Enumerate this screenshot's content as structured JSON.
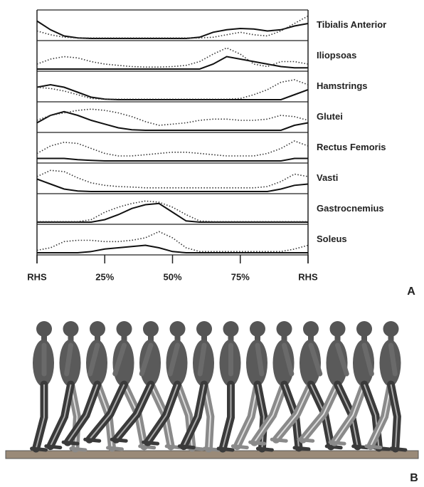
{
  "chart_data": [
    {
      "type": "line",
      "title": "Tibialis Anterior",
      "x": [
        0,
        5,
        10,
        15,
        20,
        25,
        30,
        35,
        40,
        45,
        50,
        55,
        60,
        65,
        70,
        75,
        80,
        85,
        90,
        95,
        100
      ],
      "xlim": [
        0,
        100
      ],
      "ylim": [
        0,
        1
      ],
      "series": [
        {
          "color": "#111111",
          "dash": "solid",
          "values": [
            0.7,
            0.35,
            0.1,
            0.02,
            0,
            0,
            0,
            0,
            0,
            0,
            0,
            0,
            0.05,
            0.25,
            0.35,
            0.4,
            0.38,
            0.3,
            0.35,
            0.5,
            0.6
          ]
        },
        {
          "color": "#333333",
          "dash": "dotted",
          "values": [
            0.3,
            0.15,
            0.05,
            0.02,
            0.02,
            0.02,
            0.02,
            0.02,
            0.02,
            0.02,
            0.02,
            0.02,
            0.02,
            0.05,
            0.15,
            0.25,
            0.15,
            0.1,
            0.3,
            0.6,
            0.9
          ]
        }
      ]
    },
    {
      "type": "line",
      "title": "Iliopsoas",
      "x": [
        0,
        5,
        10,
        15,
        20,
        25,
        30,
        35,
        40,
        45,
        50,
        55,
        60,
        65,
        70,
        75,
        80,
        85,
        90,
        95,
        100
      ],
      "xlim": [
        0,
        100
      ],
      "ylim": [
        0,
        1
      ],
      "series": [
        {
          "color": "#111111",
          "dash": "solid",
          "values": [
            0,
            0,
            0,
            0,
            0,
            0,
            0,
            0,
            0,
            0,
            0,
            0,
            0,
            0.2,
            0.5,
            0.4,
            0.3,
            0.2,
            0.1,
            0.05,
            0.05
          ]
        },
        {
          "color": "#333333",
          "dash": "dotted",
          "values": [
            0.2,
            0.4,
            0.5,
            0.45,
            0.3,
            0.2,
            0.15,
            0.1,
            0.08,
            0.08,
            0.1,
            0.15,
            0.3,
            0.6,
            0.85,
            0.6,
            0.2,
            0.1,
            0.3,
            0.3,
            0.2
          ]
        }
      ]
    },
    {
      "type": "line",
      "title": "Hamstrings",
      "x": [
        0,
        5,
        10,
        15,
        20,
        25,
        30,
        35,
        40,
        45,
        50,
        55,
        60,
        65,
        70,
        75,
        80,
        85,
        90,
        95,
        100
      ],
      "xlim": [
        0,
        100
      ],
      "ylim": [
        0,
        1
      ],
      "series": [
        {
          "color": "#111111",
          "dash": "solid",
          "values": [
            0.5,
            0.6,
            0.5,
            0.3,
            0.1,
            0.02,
            0,
            0,
            0,
            0,
            0,
            0,
            0,
            0,
            0,
            0,
            0,
            0,
            0,
            0.2,
            0.4
          ]
        },
        {
          "color": "#333333",
          "dash": "dotted",
          "values": [
            0.5,
            0.45,
            0.35,
            0.2,
            0.05,
            0.02,
            0.02,
            0.02,
            0.02,
            0.02,
            0.02,
            0.02,
            0.02,
            0.02,
            0.02,
            0.05,
            0.2,
            0.4,
            0.7,
            0.8,
            0.6
          ]
        }
      ]
    },
    {
      "type": "line",
      "title": "Glutei",
      "x": [
        0,
        5,
        10,
        15,
        20,
        25,
        30,
        35,
        40,
        45,
        50,
        55,
        60,
        65,
        70,
        75,
        80,
        85,
        90,
        95,
        100
      ],
      "xlim": [
        0,
        100
      ],
      "ylim": [
        0,
        1
      ],
      "series": [
        {
          "color": "#111111",
          "dash": "solid",
          "values": [
            0.3,
            0.6,
            0.75,
            0.6,
            0.4,
            0.25,
            0.1,
            0.02,
            0,
            0,
            0,
            0,
            0,
            0,
            0,
            0,
            0,
            0,
            0,
            0.2,
            0.3
          ]
        },
        {
          "color": "#333333",
          "dash": "dotted",
          "values": [
            0.4,
            0.6,
            0.7,
            0.8,
            0.85,
            0.8,
            0.7,
            0.55,
            0.35,
            0.2,
            0.25,
            0.3,
            0.4,
            0.45,
            0.45,
            0.4,
            0.4,
            0.45,
            0.6,
            0.55,
            0.4
          ]
        }
      ]
    },
    {
      "type": "line",
      "title": "Rectus Femoris",
      "x": [
        0,
        5,
        10,
        15,
        20,
        25,
        30,
        35,
        40,
        45,
        50,
        55,
        60,
        65,
        70,
        75,
        80,
        85,
        90,
        95,
        100
      ],
      "xlim": [
        0,
        100
      ],
      "ylim": [
        0,
        1
      ],
      "series": [
        {
          "color": "#111111",
          "dash": "solid",
          "values": [
            0.1,
            0.1,
            0.1,
            0.05,
            0.02,
            0,
            0,
            0,
            0,
            0,
            0,
            0,
            0,
            0,
            0,
            0,
            0,
            0,
            0,
            0.1,
            0.1
          ]
        },
        {
          "color": "#333333",
          "dash": "dotted",
          "values": [
            0.3,
            0.6,
            0.75,
            0.7,
            0.5,
            0.3,
            0.2,
            0.2,
            0.25,
            0.3,
            0.35,
            0.35,
            0.3,
            0.25,
            0.2,
            0.2,
            0.2,
            0.3,
            0.5,
            0.8,
            0.6
          ]
        }
      ]
    },
    {
      "type": "line",
      "title": "Vasti",
      "x": [
        0,
        5,
        10,
        15,
        20,
        25,
        30,
        35,
        40,
        45,
        50,
        55,
        60,
        65,
        70,
        75,
        80,
        85,
        90,
        95,
        100
      ],
      "xlim": [
        0,
        100
      ],
      "ylim": [
        0,
        1
      ],
      "series": [
        {
          "color": "#111111",
          "dash": "solid",
          "values": [
            0.5,
            0.3,
            0.1,
            0.02,
            0,
            0,
            0,
            0,
            0,
            0,
            0,
            0,
            0,
            0,
            0,
            0,
            0,
            0,
            0.1,
            0.25,
            0.3
          ]
        },
        {
          "color": "#333333",
          "dash": "dotted",
          "values": [
            0.6,
            0.85,
            0.8,
            0.55,
            0.35,
            0.25,
            0.2,
            0.18,
            0.15,
            0.15,
            0.15,
            0.15,
            0.15,
            0.15,
            0.15,
            0.15,
            0.15,
            0.2,
            0.4,
            0.7,
            0.6
          ]
        }
      ]
    },
    {
      "type": "line",
      "title": "Gastrocnemius",
      "x": [
        0,
        5,
        10,
        15,
        20,
        25,
        30,
        35,
        40,
        45,
        50,
        55,
        60,
        65,
        70,
        75,
        80,
        85,
        90,
        95,
        100
      ],
      "xlim": [
        0,
        100
      ],
      "ylim": [
        0,
        1
      ],
      "series": [
        {
          "color": "#111111",
          "dash": "solid",
          "values": [
            0,
            0,
            0,
            0,
            0,
            0.1,
            0.3,
            0.55,
            0.7,
            0.75,
            0.4,
            0.05,
            0,
            0,
            0,
            0,
            0,
            0,
            0,
            0,
            0
          ]
        },
        {
          "color": "#333333",
          "dash": "dotted",
          "values": [
            0.02,
            0.02,
            0.02,
            0.02,
            0.1,
            0.4,
            0.6,
            0.75,
            0.85,
            0.8,
            0.6,
            0.3,
            0.05,
            0.02,
            0.02,
            0.02,
            0.02,
            0.02,
            0.02,
            0.02,
            0.02
          ]
        }
      ]
    },
    {
      "type": "line",
      "title": "Soleus",
      "x": [
        0,
        5,
        10,
        15,
        20,
        25,
        30,
        35,
        40,
        45,
        50,
        55,
        60,
        65,
        70,
        75,
        80,
        85,
        90,
        95,
        100
      ],
      "xlim": [
        0,
        100
      ],
      "ylim": [
        0,
        1
      ],
      "xticks": [
        {
          "value": 0,
          "label": "RHS"
        },
        {
          "value": 25,
          "label": "25%"
        },
        {
          "value": 50,
          "label": "50%"
        },
        {
          "value": 75,
          "label": "75%"
        },
        {
          "value": 100,
          "label": "RHS"
        }
      ],
      "series": [
        {
          "color": "#111111",
          "dash": "solid",
          "values": [
            0,
            0,
            0,
            0,
            0.05,
            0.15,
            0.2,
            0.25,
            0.3,
            0.2,
            0.05,
            0,
            0,
            0,
            0,
            0,
            0,
            0,
            0,
            0,
            0
          ]
        },
        {
          "color": "#333333",
          "dash": "dotted",
          "values": [
            0.1,
            0.2,
            0.45,
            0.5,
            0.5,
            0.45,
            0.45,
            0.5,
            0.6,
            0.85,
            0.6,
            0.2,
            0.05,
            0.05,
            0.05,
            0.05,
            0.05,
            0.05,
            0.05,
            0.15,
            0.3
          ]
        }
      ]
    }
  ],
  "figure": {
    "panel_a": "A",
    "panel_b": "B"
  }
}
